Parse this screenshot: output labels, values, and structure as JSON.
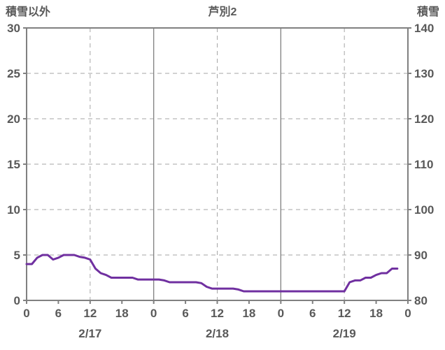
{
  "header": {
    "left_label": "積雪以外",
    "title": "芦別2",
    "right_label": "積雪"
  },
  "chart_data": {
    "type": "line",
    "title": "芦別2",
    "grid": true,
    "legend": "none",
    "left_axis": {
      "label": "積雪以外",
      "min": 0,
      "max": 30,
      "ticks": [
        0,
        5,
        10,
        15,
        20,
        25,
        30
      ]
    },
    "right_axis": {
      "label": "積雪",
      "min": 80,
      "max": 140,
      "ticks": [
        80,
        90,
        100,
        110,
        120,
        130,
        140
      ]
    },
    "x_axis": {
      "hours_total": 72,
      "tick_hours": [
        0,
        6,
        12,
        18,
        24,
        30,
        36,
        42,
        48,
        54,
        60,
        66,
        72
      ],
      "tick_labels": [
        "0",
        "6",
        "12",
        "18",
        "0",
        "6",
        "12",
        "18",
        "0",
        "6",
        "12",
        "18",
        "0"
      ],
      "day_labels": [
        {
          "label": "2/17",
          "center_hour": 12
        },
        {
          "label": "2/18",
          "center_hour": 36
        },
        {
          "label": "2/19",
          "center_hour": 60
        }
      ],
      "solid_grid_hours": [
        24,
        48
      ],
      "dashed_grid_hours": [
        12,
        36,
        60
      ]
    },
    "series": [
      {
        "name": "積雪以外",
        "axis": "left",
        "color": "#7030A0",
        "start_hour": 0,
        "values": [
          4,
          4,
          4.7,
          5,
          5,
          4.5,
          4.7,
          5,
          5,
          5,
          4.8,
          4.7,
          4.5,
          3.5,
          3,
          2.8,
          2.5,
          2.5,
          2.5,
          2.5,
          2.5,
          2.3,
          2.3,
          2.3,
          2.3,
          2.3,
          2.2,
          2,
          2,
          2,
          2,
          2,
          2,
          1.9,
          1.5,
          1.3,
          1.3,
          1.3,
          1.3,
          1.3,
          1.2,
          1,
          1,
          1,
          1,
          1,
          1,
          1,
          1,
          1,
          1,
          1,
          1,
          1,
          1,
          1,
          1,
          1,
          1,
          1,
          1,
          2,
          2.2,
          2.2,
          2.5,
          2.5,
          2.8,
          3,
          3,
          3.5,
          3.5
        ]
      }
    ],
    "style": {
      "background": "#FFFFFF",
      "border_color": "#808080",
      "grid_color": "#A6A6A6",
      "text_color": "#595959"
    }
  }
}
